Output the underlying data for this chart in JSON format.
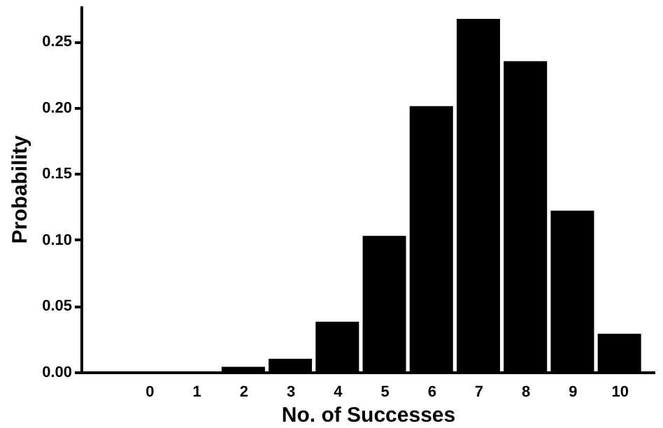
{
  "chart_data": {
    "type": "bar",
    "xlabel": "No. of Successes",
    "ylabel": "Probability",
    "x": [
      0,
      1,
      2,
      3,
      4,
      5,
      6,
      7,
      8,
      9,
      10
    ],
    "values": [
      0,
      0,
      0.004,
      0.01,
      0.038,
      0.103,
      0.201,
      0.267,
      0.235,
      0.122,
      0.029
    ],
    "color": "#000000",
    "xlim": [
      -1.3,
      10.6
    ],
    "xticks": [
      0,
      1,
      2,
      3,
      4,
      5,
      6,
      7,
      8,
      9,
      10
    ],
    "ylim": [
      0,
      0.277
    ],
    "yticks": [
      {
        "value": 0,
        "label": "0.00"
      },
      {
        "value": 0.05,
        "label": "0.05"
      },
      {
        "value": 0.1,
        "label": "0.10"
      },
      {
        "value": 0.15,
        "label": "0.15"
      },
      {
        "value": 0.2,
        "label": "0.20"
      },
      {
        "value": 0.25,
        "label": "0.25"
      }
    ],
    "grid": false
  }
}
